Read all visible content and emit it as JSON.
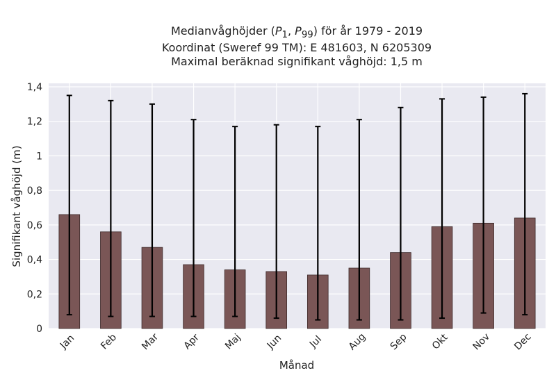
{
  "chart_data": {
    "type": "bar",
    "title_lines": [
      "Medianvåghöjder (P1, P99) för år 1979 - 2019",
      "Koordinat (Sweref 99 TM): E 481603, N 6205309",
      "Maximal beräknad signifikant våghöjd: 1,5 m"
    ],
    "xlabel": "Månad",
    "ylabel": "Signifikant våghöjd (m)",
    "categories": [
      "Jan",
      "Feb",
      "Mar",
      "Apr",
      "Maj",
      "Jun",
      "Jul",
      "Aug",
      "Sep",
      "Okt",
      "Nov",
      "Dec"
    ],
    "values": [
      0.66,
      0.56,
      0.47,
      0.37,
      0.34,
      0.33,
      0.31,
      0.35,
      0.44,
      0.59,
      0.61,
      0.64
    ],
    "error_low": [
      0.08,
      0.07,
      0.07,
      0.07,
      0.07,
      0.06,
      0.05,
      0.05,
      0.05,
      0.06,
      0.09,
      0.08
    ],
    "error_high": [
      1.35,
      1.32,
      1.3,
      1.21,
      1.17,
      1.18,
      1.17,
      1.21,
      1.28,
      1.33,
      1.34,
      1.36
    ],
    "yticks": [
      0,
      0.2,
      0.4,
      0.6,
      0.8,
      1,
      1.2,
      1.4
    ],
    "ytick_labels": [
      "0",
      "0,2",
      "0,4",
      "0,6",
      "0,8",
      "1",
      "1,2",
      "1,4"
    ],
    "ylim": [
      0,
      1.42
    ],
    "grid": true,
    "colors": {
      "bar": "#7a5656",
      "bar_edge": "#3d2a2a",
      "error": "#000000",
      "background": "#e9e9f1",
      "grid": "#ffffff"
    }
  }
}
